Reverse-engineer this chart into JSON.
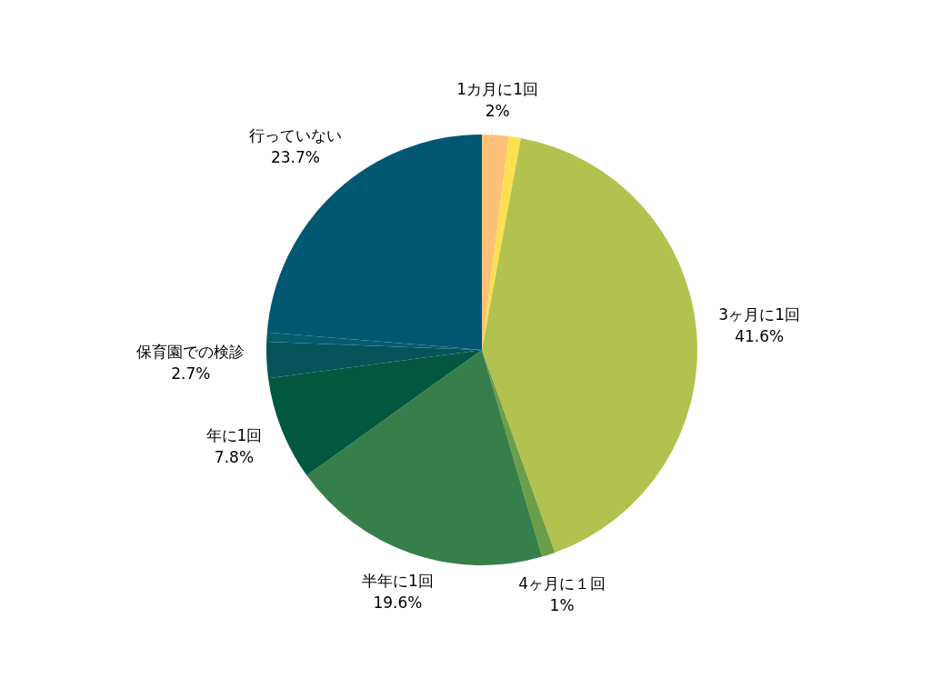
{
  "chart_data": {
    "type": "pie",
    "categories": [
      "1カ月に1回",
      null,
      "3ヶ月に1回",
      "4ヶ月に１回",
      "半年に1回",
      "年に1回",
      "保育園での検診",
      null,
      "行っていない"
    ],
    "values": [
      2,
      0.9,
      41.6,
      1,
      19.6,
      7.8,
      2.7,
      0.7,
      23.7
    ],
    "value_labels": [
      "2%",
      null,
      "41.6%",
      "1%",
      "19.6%",
      "7.8%",
      "2.7%",
      null,
      "23.7%"
    ],
    "colors": [
      "#fec076",
      "#fde050",
      "#b3c24f",
      "#6b9e49",
      "#367f4b",
      "#02583f",
      "#04545a",
      "#045d6c",
      "#025772"
    ],
    "legend": false
  }
}
